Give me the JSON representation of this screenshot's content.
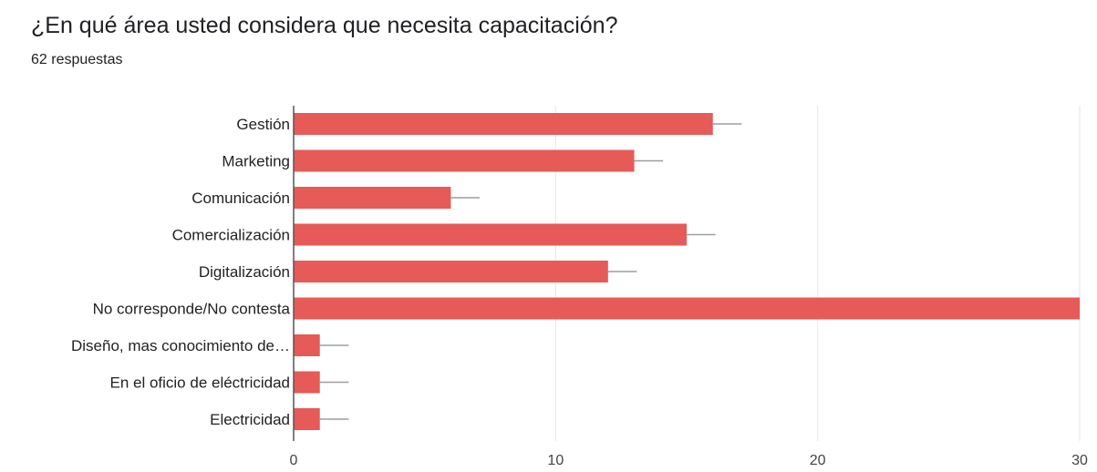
{
  "question": {
    "title": "¿En qué área usted considera que necesita capacitación?",
    "responses": "62 respuestas"
  },
  "colors": {
    "bar": "#e65a57",
    "error_bar": "#9e9e9e",
    "grid": "#e6e6e6",
    "axis": "#555555"
  },
  "chart_data": {
    "type": "bar",
    "orientation": "horizontal",
    "title": "¿En qué área usted considera que necesita capacitación?",
    "subtitle": "62 respuestas",
    "categories": [
      "Gestión",
      "Marketing",
      "Comunicación",
      "Comercialización",
      "Digitalización",
      "No corresponde/No contesta",
      "Diseño, mas conocimiento de…",
      "En el oficio de eléctricidad",
      "Electricidad"
    ],
    "values": [
      16,
      13,
      6,
      15,
      12,
      30,
      1,
      1,
      1
    ],
    "xlim": [
      0,
      30
    ],
    "xticks": [
      0,
      10,
      20,
      30
    ],
    "error_bars": true,
    "grid": true
  }
}
